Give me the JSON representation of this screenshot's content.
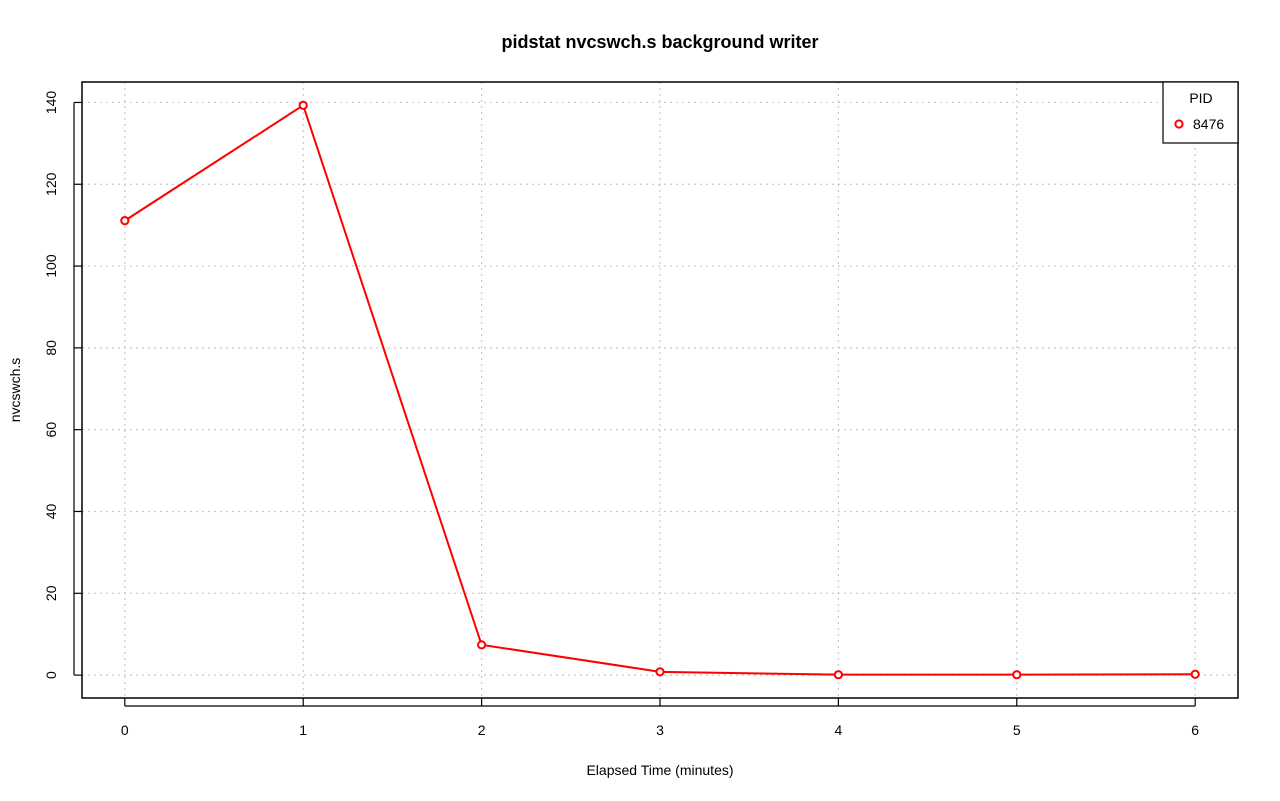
{
  "chart_data": {
    "type": "line",
    "title": "pidstat nvcswch.s background writer",
    "xlabel": "Elapsed Time (minutes)",
    "ylabel": "nvcswch.s",
    "xlim": [
      -0.24,
      6.24
    ],
    "ylim": [
      -5.6,
      145.0
    ],
    "xticks": [
      0,
      1,
      2,
      3,
      4,
      5,
      6
    ],
    "yticks": [
      0,
      20,
      40,
      60,
      80,
      100,
      120,
      140
    ],
    "grid": true,
    "legend": {
      "title": "PID",
      "placement": "top-right"
    },
    "series": [
      {
        "name": "8476",
        "color": "#ff0000",
        "marker": "open-circle",
        "x": [
          0,
          1,
          2,
          3,
          4,
          5,
          6
        ],
        "y": [
          111.1,
          139.3,
          7.4,
          0.8,
          0.1,
          0.1,
          0.2
        ]
      }
    ]
  }
}
